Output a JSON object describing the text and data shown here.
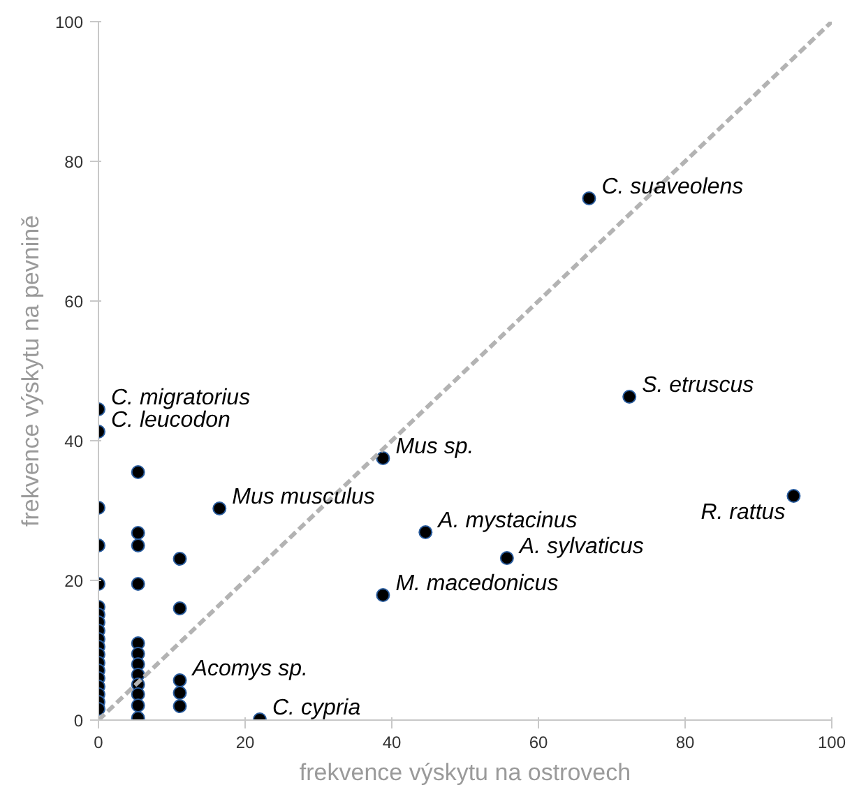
{
  "chart_data": {
    "type": "scatter",
    "xlabel": "frekvence výskytu na ostrovech",
    "ylabel": "frekvence výskytu na pevnině",
    "xlim": [
      0,
      100
    ],
    "ylim": [
      0,
      100
    ],
    "xticks": [
      0,
      20,
      40,
      60,
      80,
      100
    ],
    "yticks": [
      0,
      20,
      40,
      60,
      80,
      100
    ],
    "grid": false,
    "series": [
      {
        "marker": "circle",
        "color": "#000000",
        "x": [
          0,
          0,
          0,
          0,
          0,
          0,
          0,
          0,
          0,
          0,
          0,
          0,
          0,
          0,
          0,
          0,
          0,
          0,
          0,
          5.4,
          5.4,
          5.4,
          5.4,
          5.4,
          5.4,
          5.4,
          5.4,
          5.4,
          5.4,
          5.4,
          5.4,
          11.1,
          11.1,
          11.1,
          11.1,
          11.1,
          22,
          16.5,
          66.9,
          72.4,
          38.8,
          94.8,
          44.6,
          55.7,
          38.8
        ],
        "values": [
          44.5,
          41.3,
          30.4,
          25,
          19.5,
          16.2,
          15.1,
          14,
          12.8,
          11.6,
          10.5,
          9.4,
          8.2,
          7.1,
          6,
          4.8,
          3.7,
          2.6,
          1.6,
          35.5,
          26.8,
          25,
          19.5,
          11,
          9.5,
          8,
          6.5,
          5.1,
          3.7,
          2.1,
          0.3,
          23.1,
          16,
          5.7,
          3.9,
          2,
          0.1,
          30.3,
          74.7,
          46.3,
          37.5,
          32.1,
          26.9,
          23.2,
          17.9
        ]
      },
      {
        "type": "line",
        "color": "#b3b3b3",
        "line_style": "dashed",
        "x": [
          0,
          100
        ],
        "values": [
          0,
          100
        ]
      }
    ],
    "annotations": [
      {
        "text": "C. migratorius",
        "x": 0,
        "y": 44.5
      },
      {
        "text": "C. leucodon",
        "x": 0,
        "y": 41.3
      },
      {
        "text": "Mus musculus",
        "x": 16.5,
        "y": 30.3
      },
      {
        "text": "Acomys sp.",
        "x": 11.1,
        "y": 5.7
      },
      {
        "text": "C. cypria",
        "x": 22,
        "y": 0.1
      },
      {
        "text": "C. suaveolens",
        "x": 66.9,
        "y": 74.7
      },
      {
        "text": "S. etruscus",
        "x": 72.4,
        "y": 46.3
      },
      {
        "text": "Mus sp.",
        "x": 38.8,
        "y": 37.5
      },
      {
        "text": "R. rattus",
        "x": 94.8,
        "y": 32.1
      },
      {
        "text": "A. mystacinus",
        "x": 44.6,
        "y": 26.9
      },
      {
        "text": "A. sylvaticus",
        "x": 55.7,
        "y": 23.2
      },
      {
        "text": "M. macedonicus",
        "x": 38.8,
        "y": 17.9
      }
    ]
  }
}
